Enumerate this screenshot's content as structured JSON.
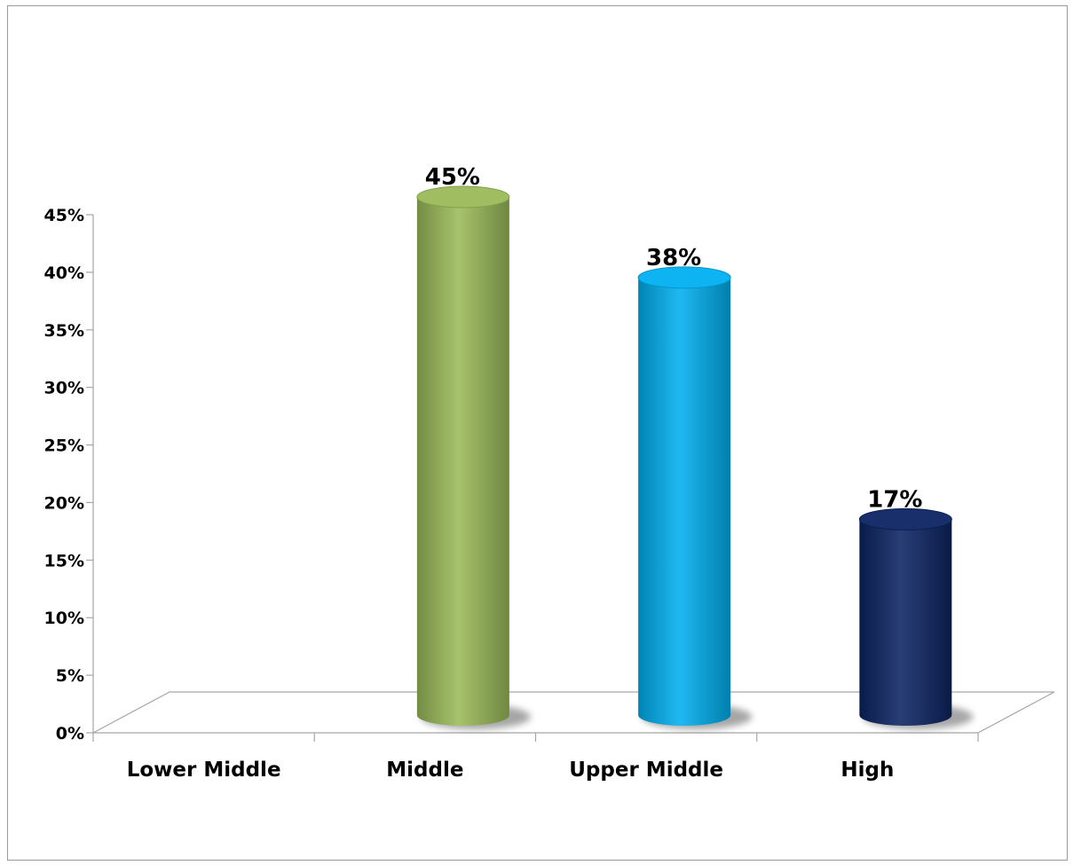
{
  "chart_data": {
    "type": "bar",
    "style": "3d-cylinder",
    "categories": [
      "Lower Middle",
      "Middle",
      "Upper Middle",
      "High"
    ],
    "values": [
      0,
      45,
      38,
      17
    ],
    "value_labels": [
      "",
      "45%",
      "38%",
      "17%"
    ],
    "colors": [
      "#9bbb59",
      "#9bbb59",
      "#00b0f0",
      "#0c2463"
    ],
    "title": "",
    "xlabel": "",
    "ylabel": "",
    "ylim": [
      0,
      45
    ],
    "y_ticks": [
      "0%",
      "5%",
      "10%",
      "15%",
      "20%",
      "25%",
      "30%",
      "35%",
      "40%",
      "45%"
    ],
    "grid": false,
    "legend": "none"
  }
}
